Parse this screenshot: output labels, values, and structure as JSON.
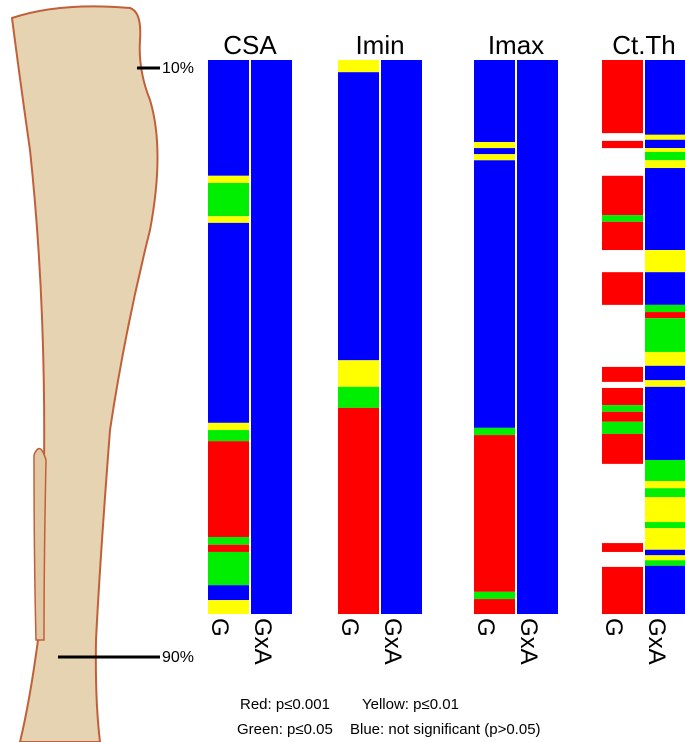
{
  "chart_data": {
    "type": "strips",
    "ylim": [
      0,
      100
    ],
    "markers": [
      "10%",
      "90%"
    ],
    "columns": [
      {
        "name": "CSA",
        "strips": [
          {
            "label": "G",
            "segments": [
              [
                0,
                20.9,
                "#0000ff"
              ],
              [
                20.9,
                22.2,
                "#ffff00"
              ],
              [
                22.2,
                28.2,
                "#00ee00"
              ],
              [
                28.2,
                29.4,
                "#ffff00"
              ],
              [
                29.4,
                65.5,
                "#0000ff"
              ],
              [
                65.5,
                66.8,
                "#ffff00"
              ],
              [
                66.8,
                68.8,
                "#00ee00"
              ],
              [
                68.8,
                86.1,
                "#ff0000"
              ],
              [
                86.1,
                87.5,
                "#00ee00"
              ],
              [
                87.5,
                88.8,
                "#ff0000"
              ],
              [
                88.8,
                94.8,
                "#00ee00"
              ],
              [
                94.8,
                97.5,
                "#0000ff"
              ],
              [
                97.5,
                100,
                "#ffff00"
              ]
            ]
          },
          {
            "label": "GxA",
            "segments": [
              [
                0,
                100,
                "#0000ff"
              ]
            ]
          }
        ]
      },
      {
        "name": "Imin",
        "strips": [
          {
            "label": "G",
            "segments": [
              [
                0,
                2.2,
                "#ffff00"
              ],
              [
                2.2,
                54.2,
                "#0000ff"
              ],
              [
                54.2,
                59.0,
                "#ffff00"
              ],
              [
                59.0,
                62.8,
                "#00ee00"
              ],
              [
                62.8,
                100,
                "#ff0000"
              ]
            ]
          },
          {
            "label": "GxA",
            "segments": [
              [
                0,
                100,
                "#0000ff"
              ]
            ]
          }
        ]
      },
      {
        "name": "Imax",
        "strips": [
          {
            "label": "G",
            "segments": [
              [
                0,
                14.8,
                "#0000ff"
              ],
              [
                14.8,
                15.9,
                "#ffff00"
              ],
              [
                15.9,
                17.0,
                "#0000ff"
              ],
              [
                17.0,
                18.1,
                "#ffff00"
              ],
              [
                18.1,
                66.4,
                "#0000ff"
              ],
              [
                66.4,
                67.7,
                "#00ee00"
              ],
              [
                67.7,
                96.0,
                "#ff0000"
              ],
              [
                96.0,
                97.3,
                "#00ee00"
              ],
              [
                97.3,
                100,
                "#ff0000"
              ]
            ]
          },
          {
            "label": "GxA",
            "segments": [
              [
                0,
                100,
                "#0000ff"
              ]
            ]
          }
        ]
      },
      {
        "name": "Ct.Th",
        "strips": [
          {
            "label": "G",
            "segments": [
              [
                0,
                13.2,
                "#ff0000"
              ],
              [
                14.6,
                15.9,
                "#ff0000"
              ],
              [
                20.9,
                28.0,
                "#ff0000"
              ],
              [
                28.0,
                29.2,
                "#00ee00"
              ],
              [
                29.2,
                34.3,
                "#ff0000"
              ],
              [
                38.3,
                44.2,
                "#ff0000"
              ],
              [
                55.4,
                58.1,
                "#ff0000"
              ],
              [
                59.2,
                62.3,
                "#ff0000"
              ],
              [
                62.3,
                63.5,
                "#00ee00"
              ],
              [
                63.5,
                65.3,
                "#ff0000"
              ],
              [
                65.3,
                67.5,
                "#00ee00"
              ],
              [
                67.5,
                72.9,
                "#ff0000"
              ],
              [
                87.2,
                88.8,
                "#ff0000"
              ],
              [
                91.5,
                100,
                "#ff0000"
              ]
            ]
          },
          {
            "label": "GxA",
            "segments": [
              [
                0,
                13.5,
                "#0000ff"
              ],
              [
                13.5,
                14.4,
                "#ffff00"
              ],
              [
                14.4,
                15.9,
                "#0000ff"
              ],
              [
                15.9,
                16.6,
                "#ffff00"
              ],
              [
                16.6,
                18.1,
                "#00ee00"
              ],
              [
                18.1,
                19.5,
                "#ffff00"
              ],
              [
                19.5,
                34.3,
                "#0000ff"
              ],
              [
                34.3,
                38.3,
                "#ffff00"
              ],
              [
                38.3,
                44.2,
                "#0000ff"
              ],
              [
                44.2,
                45.5,
                "#00ee00"
              ],
              [
                45.5,
                46.6,
                "#ff0000"
              ],
              [
                46.6,
                52.7,
                "#00ee00"
              ],
              [
                52.7,
                55.2,
                "#ffff00"
              ],
              [
                55.2,
                57.8,
                "#0000ff"
              ],
              [
                57.8,
                59.0,
                "#ffff00"
              ],
              [
                59.0,
                72.2,
                "#0000ff"
              ],
              [
                72.2,
                76.0,
                "#00ee00"
              ],
              [
                76.0,
                77.3,
                "#ffff00"
              ],
              [
                77.3,
                78.9,
                "#00ee00"
              ],
              [
                78.9,
                83.4,
                "#ffff00"
              ],
              [
                83.4,
                84.5,
                "#00ee00"
              ],
              [
                84.5,
                88.4,
                "#ffff00"
              ],
              [
                88.4,
                89.4,
                "#0000ff"
              ],
              [
                89.4,
                90.3,
                "#ffff00"
              ],
              [
                90.3,
                91.3,
                "#00ee00"
              ],
              [
                91.3,
                100,
                "#0000ff"
              ]
            ]
          }
        ]
      }
    ],
    "legend": [
      "Red: p≤0.001",
      "Yellow: p≤0.01",
      "Green: p≤0.05",
      "Blue: not significant (p>0.05)"
    ]
  }
}
